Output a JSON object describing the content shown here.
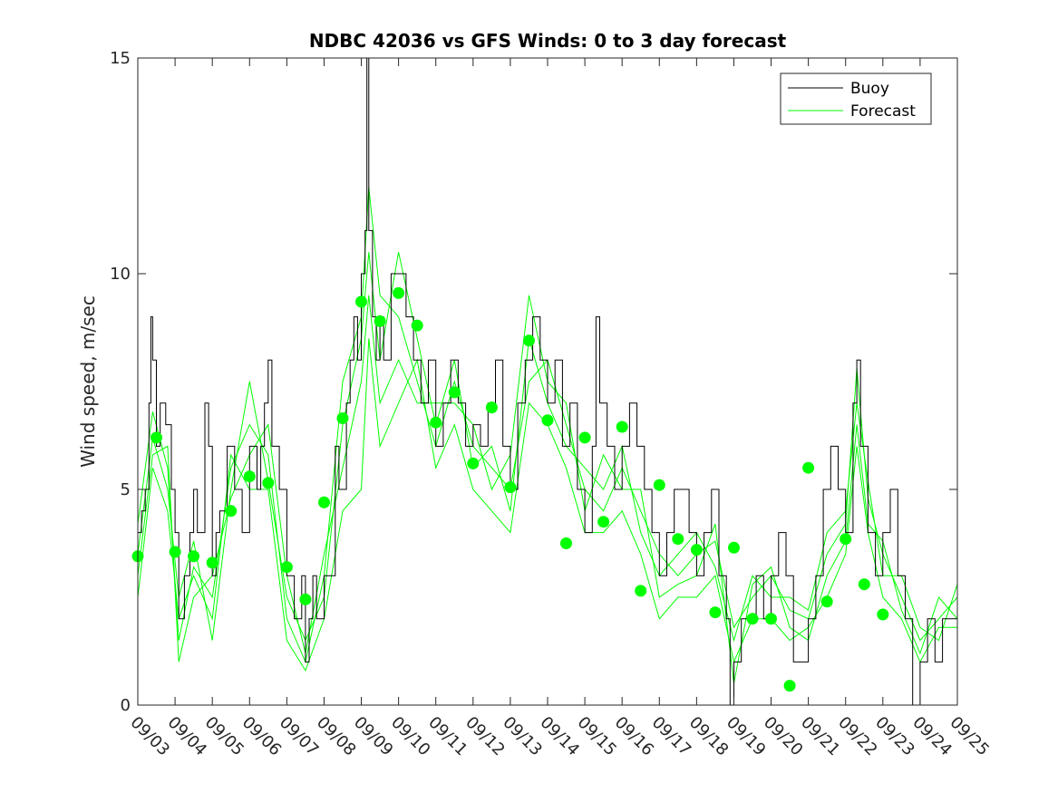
{
  "chart_data": {
    "type": "line",
    "title": "NDBC 42036 vs GFS Winds: 0 to 3 day forecast",
    "xlabel": "",
    "ylabel": "Wind speed, m/sec",
    "ylim": [
      0,
      15
    ],
    "yticks": [
      0,
      5,
      10,
      15
    ],
    "xticks": [
      "09/03",
      "09/04",
      "09/05",
      "09/06",
      "09/07",
      "09/08",
      "09/09",
      "09/10",
      "09/11",
      "09/12",
      "09/13",
      "09/14",
      "09/15",
      "09/16",
      "09/17",
      "09/18",
      "09/19",
      "09/20",
      "09/21",
      "09/22",
      "09/23",
      "09/24",
      "09/25"
    ],
    "legend": {
      "position": "top-right",
      "entries": [
        "Buoy",
        "Forecast"
      ]
    },
    "colors": {
      "buoy": "#000000",
      "forecast": "#00ff00",
      "axis": "#262626"
    },
    "buoy_points": [
      [
        0,
        4
      ],
      [
        0.1,
        4.5
      ],
      [
        0.2,
        5
      ],
      [
        0.3,
        7
      ],
      [
        0.35,
        9
      ],
      [
        0.4,
        8
      ],
      [
        0.5,
        6
      ],
      [
        0.6,
        7
      ],
      [
        0.75,
        6.5
      ],
      [
        0.9,
        5
      ],
      [
        1.0,
        4
      ],
      [
        1.1,
        2
      ],
      [
        1.25,
        3
      ],
      [
        1.4,
        4
      ],
      [
        1.5,
        5
      ],
      [
        1.6,
        4
      ],
      [
        1.8,
        7
      ],
      [
        1.9,
        6
      ],
      [
        2.0,
        3
      ],
      [
        2.1,
        4
      ],
      [
        2.2,
        4.5
      ],
      [
        2.4,
        6
      ],
      [
        2.6,
        5
      ],
      [
        2.8,
        4
      ],
      [
        3.0,
        6
      ],
      [
        3.2,
        5
      ],
      [
        3.3,
        6
      ],
      [
        3.4,
        7
      ],
      [
        3.5,
        8
      ],
      [
        3.6,
        6
      ],
      [
        3.8,
        5
      ],
      [
        4.0,
        3
      ],
      [
        4.2,
        2
      ],
      [
        4.4,
        3
      ],
      [
        4.5,
        1
      ],
      [
        4.6,
        2
      ],
      [
        4.7,
        3
      ],
      [
        4.8,
        2
      ],
      [
        5.0,
        3
      ],
      [
        5.2,
        3
      ],
      [
        5.3,
        6
      ],
      [
        5.4,
        5
      ],
      [
        5.6,
        7
      ],
      [
        5.7,
        8
      ],
      [
        5.8,
        9
      ],
      [
        5.9,
        8
      ],
      [
        6.0,
        10
      ],
      [
        6.1,
        11
      ],
      [
        6.15,
        15
      ],
      [
        6.2,
        11
      ],
      [
        6.3,
        9
      ],
      [
        6.4,
        8
      ],
      [
        6.5,
        9
      ],
      [
        6.6,
        8
      ],
      [
        6.8,
        10
      ],
      [
        7.0,
        10
      ],
      [
        7.2,
        9
      ],
      [
        7.4,
        8
      ],
      [
        7.6,
        7
      ],
      [
        7.8,
        8
      ],
      [
        8.0,
        6
      ],
      [
        8.2,
        7
      ],
      [
        8.4,
        8
      ],
      [
        8.6,
        7
      ],
      [
        8.8,
        6
      ],
      [
        9.0,
        6.5
      ],
      [
        9.2,
        6
      ],
      [
        9.4,
        7
      ],
      [
        9.6,
        8
      ],
      [
        9.8,
        6
      ],
      [
        10.0,
        5
      ],
      [
        10.2,
        7
      ],
      [
        10.4,
        8
      ],
      [
        10.6,
        9
      ],
      [
        10.8,
        8
      ],
      [
        11.0,
        7
      ],
      [
        11.2,
        8
      ],
      [
        11.4,
        6
      ],
      [
        11.6,
        7
      ],
      [
        11.8,
        5
      ],
      [
        12.0,
        4
      ],
      [
        12.2,
        6
      ],
      [
        12.3,
        9
      ],
      [
        12.4,
        7
      ],
      [
        12.6,
        6
      ],
      [
        12.8,
        5
      ],
      [
        13.0,
        6
      ],
      [
        13.2,
        7
      ],
      [
        13.4,
        6
      ],
      [
        13.6,
        5
      ],
      [
        13.8,
        4
      ],
      [
        14.0,
        3
      ],
      [
        14.2,
        4
      ],
      [
        14.4,
        5
      ],
      [
        14.6,
        5
      ],
      [
        14.8,
        4
      ],
      [
        15.0,
        3
      ],
      [
        15.2,
        4
      ],
      [
        15.4,
        5
      ],
      [
        15.6,
        3
      ],
      [
        15.8,
        2
      ],
      [
        15.9,
        0
      ],
      [
        16.0,
        1
      ],
      [
        16.2,
        2
      ],
      [
        16.4,
        2
      ],
      [
        16.6,
        3
      ],
      [
        16.8,
        2
      ],
      [
        17.0,
        3
      ],
      [
        17.2,
        4
      ],
      [
        17.4,
        3
      ],
      [
        17.6,
        1
      ],
      [
        17.8,
        1
      ],
      [
        18.0,
        2
      ],
      [
        18.2,
        3
      ],
      [
        18.4,
        5
      ],
      [
        18.6,
        6
      ],
      [
        18.8,
        5
      ],
      [
        19.0,
        4
      ],
      [
        19.2,
        7
      ],
      [
        19.3,
        8
      ],
      [
        19.4,
        6
      ],
      [
        19.6,
        4
      ],
      [
        19.8,
        3
      ],
      [
        20.0,
        4
      ],
      [
        20.2,
        5
      ],
      [
        20.4,
        3
      ],
      [
        20.6,
        2
      ],
      [
        20.8,
        0
      ],
      [
        21.0,
        1
      ],
      [
        21.2,
        2
      ],
      [
        21.4,
        1
      ],
      [
        21.6,
        2
      ],
      [
        22.0,
        2
      ]
    ],
    "forecast_runs": [
      [
        [
          0,
          4.2
        ],
        [
          0.4,
          6.8
        ],
        [
          0.8,
          5.5
        ],
        [
          1.1,
          1.5
        ],
        [
          1.5,
          3.2
        ],
        [
          2.0,
          2.5
        ],
        [
          2.5,
          5.5
        ],
        [
          3.0,
          6.5
        ],
        [
          3.5,
          5.8
        ],
        [
          4.0,
          2.0
        ],
        [
          4.5,
          1.0
        ],
        [
          5.0,
          3.0
        ],
        [
          5.5,
          7.5
        ],
        [
          6.0,
          9.0
        ],
        [
          6.2,
          12.0
        ],
        [
          6.5,
          9.5
        ],
        [
          7.0,
          9.0
        ],
        [
          7.5,
          7.5
        ],
        [
          8.0,
          6.0
        ],
        [
          8.5,
          7.5
        ],
        [
          9.0,
          6.0
        ],
        [
          9.5,
          5.5
        ],
        [
          10.0,
          5.0
        ],
        [
          10.5,
          7.5
        ],
        [
          11.0,
          8.0
        ],
        [
          11.5,
          6.5
        ],
        [
          12.0,
          5.0
        ],
        [
          12.5,
          4.5
        ],
        [
          13.0,
          5.5
        ],
        [
          13.5,
          4.5
        ],
        [
          14.0,
          3.5
        ],
        [
          14.5,
          3.0
        ],
        [
          15.0,
          3.5
        ],
        [
          15.5,
          3.8
        ],
        [
          16.0,
          1.8
        ],
        [
          16.5,
          2.5
        ],
        [
          17.0,
          3.0
        ],
        [
          17.5,
          2.2
        ],
        [
          18.0,
          2.0
        ],
        [
          18.5,
          3.5
        ],
        [
          19.0,
          4.2
        ],
        [
          19.3,
          7.8
        ],
        [
          19.6,
          4.8
        ],
        [
          20.0,
          3.5
        ],
        [
          20.5,
          2.5
        ],
        [
          21.0,
          1.5
        ],
        [
          21.5,
          2.0
        ],
        [
          22.0,
          2.5
        ]
      ],
      [
        [
          0,
          3.5
        ],
        [
          0.4,
          6.2
        ],
        [
          0.8,
          5.0
        ],
        [
          1.1,
          2.5
        ],
        [
          1.5,
          3.8
        ],
        [
          2.0,
          1.5
        ],
        [
          2.5,
          5.0
        ],
        [
          3.0,
          7.5
        ],
        [
          3.5,
          5.2
        ],
        [
          4.0,
          2.5
        ],
        [
          4.5,
          1.5
        ],
        [
          5.0,
          2.5
        ],
        [
          5.5,
          6.5
        ],
        [
          6.0,
          8.5
        ],
        [
          6.2,
          10.5
        ],
        [
          6.5,
          8.0
        ],
        [
          7.0,
          10.5
        ],
        [
          7.5,
          8.5
        ],
        [
          8.0,
          6.5
        ],
        [
          8.5,
          8.0
        ],
        [
          9.0,
          5.5
        ],
        [
          9.5,
          6.0
        ],
        [
          10.0,
          4.5
        ],
        [
          10.5,
          8.5
        ],
        [
          11.0,
          7.0
        ],
        [
          11.5,
          6.0
        ],
        [
          12.0,
          5.5
        ],
        [
          12.5,
          5.0
        ],
        [
          13.0,
          6.0
        ],
        [
          13.5,
          4.0
        ],
        [
          14.0,
          3.0
        ],
        [
          14.5,
          3.5
        ],
        [
          15.0,
          4.0
        ],
        [
          15.5,
          3.2
        ],
        [
          16.0,
          1.5
        ],
        [
          16.5,
          3.0
        ],
        [
          17.0,
          2.5
        ],
        [
          17.5,
          2.5
        ],
        [
          18.0,
          2.2
        ],
        [
          18.5,
          4.0
        ],
        [
          19.0,
          4.5
        ],
        [
          19.3,
          7.0
        ],
        [
          19.6,
          5.2
        ],
        [
          20.0,
          3.0
        ],
        [
          20.5,
          3.0
        ],
        [
          21.0,
          1.8
        ],
        [
          21.5,
          1.5
        ],
        [
          22.0,
          2.8
        ]
      ],
      [
        [
          0,
          3.0
        ],
        [
          0.4,
          5.8
        ],
        [
          0.8,
          6.0
        ],
        [
          1.1,
          1.0
        ],
        [
          1.5,
          2.5
        ],
        [
          2.0,
          3.0
        ],
        [
          2.5,
          4.8
        ],
        [
          3.0,
          5.8
        ],
        [
          3.5,
          6.5
        ],
        [
          4.0,
          3.0
        ],
        [
          4.5,
          1.2
        ],
        [
          5.0,
          3.5
        ],
        [
          5.5,
          5.5
        ],
        [
          6.0,
          7.5
        ],
        [
          6.2,
          9.5
        ],
        [
          6.5,
          7.0
        ],
        [
          7.0,
          8.0
        ],
        [
          7.5,
          7.0
        ],
        [
          8.0,
          7.0
        ],
        [
          8.5,
          7.0
        ],
        [
          9.0,
          6.5
        ],
        [
          9.5,
          5.0
        ],
        [
          10.0,
          5.8
        ],
        [
          10.5,
          9.5
        ],
        [
          11.0,
          7.5
        ],
        [
          11.5,
          7.0
        ],
        [
          12.0,
          4.5
        ],
        [
          12.5,
          5.8
        ],
        [
          13.0,
          5.0
        ],
        [
          13.5,
          5.0
        ],
        [
          14.0,
          2.5
        ],
        [
          14.5,
          2.8
        ],
        [
          15.0,
          3.0
        ],
        [
          15.5,
          4.2
        ],
        [
          16.0,
          0.5
        ],
        [
          16.5,
          2.8
        ],
        [
          17.0,
          3.2
        ],
        [
          17.5,
          1.8
        ],
        [
          18.0,
          1.5
        ],
        [
          18.5,
          3.0
        ],
        [
          19.0,
          3.8
        ],
        [
          19.3,
          6.5
        ],
        [
          19.6,
          4.2
        ],
        [
          20.0,
          3.8
        ],
        [
          20.5,
          2.2
        ],
        [
          21.0,
          1.2
        ],
        [
          21.5,
          2.5
        ],
        [
          22.0,
          2.0
        ]
      ],
      [
        [
          0,
          2.5
        ],
        [
          0.4,
          5.5
        ],
        [
          0.8,
          4.5
        ],
        [
          1.1,
          2.0
        ],
        [
          1.5,
          3.0
        ],
        [
          2.0,
          2.0
        ],
        [
          2.5,
          5.8
        ],
        [
          3.0,
          5.0
        ],
        [
          3.5,
          5.0
        ],
        [
          4.0,
          1.5
        ],
        [
          4.5,
          0.8
        ],
        [
          5.0,
          2.0
        ],
        [
          5.5,
          4.5
        ],
        [
          6.0,
          5.0
        ],
        [
          6.2,
          8.5
        ],
        [
          6.5,
          6.0
        ],
        [
          7.0,
          7.0
        ],
        [
          7.5,
          8.0
        ],
        [
          8.0,
          5.5
        ],
        [
          8.5,
          6.5
        ],
        [
          9.0,
          5.0
        ],
        [
          9.5,
          4.5
        ],
        [
          10.0,
          4.0
        ],
        [
          10.5,
          7.0
        ],
        [
          11.0,
          6.5
        ],
        [
          11.5,
          5.5
        ],
        [
          12.0,
          4.0
        ],
        [
          12.5,
          4.0
        ],
        [
          13.0,
          4.5
        ],
        [
          13.5,
          3.5
        ],
        [
          14.0,
          2.0
        ],
        [
          14.5,
          2.5
        ],
        [
          15.0,
          2.5
        ],
        [
          15.5,
          3.0
        ],
        [
          16.0,
          1.0
        ],
        [
          16.5,
          2.0
        ],
        [
          17.0,
          2.0
        ],
        [
          17.5,
          1.5
        ],
        [
          18.0,
          1.8
        ],
        [
          18.5,
          2.5
        ],
        [
          19.0,
          3.5
        ],
        [
          19.3,
          6.0
        ],
        [
          19.6,
          4.0
        ],
        [
          20.0,
          2.5
        ],
        [
          20.5,
          2.0
        ],
        [
          21.0,
          1.0
        ],
        [
          21.5,
          1.8
        ],
        [
          22.0,
          1.8
        ]
      ]
    ],
    "forecast_markers": [
      [
        0,
        3.45
      ],
      [
        0.5,
        6.2
      ],
      [
        1.0,
        3.55
      ],
      [
        1.5,
        3.45
      ],
      [
        2.0,
        3.3
      ],
      [
        2.5,
        4.5
      ],
      [
        3.0,
        5.3
      ],
      [
        3.5,
        5.15
      ],
      [
        4.0,
        3.2
      ],
      [
        4.5,
        2.45
      ],
      [
        5.0,
        4.7
      ],
      [
        5.5,
        6.65
      ],
      [
        6.0,
        9.35
      ],
      [
        6.5,
        8.9
      ],
      [
        7.0,
        9.55
      ],
      [
        7.5,
        8.8
      ],
      [
        8.0,
        6.55
      ],
      [
        8.5,
        7.25
      ],
      [
        9.0,
        5.6
      ],
      [
        9.5,
        6.9
      ],
      [
        10.0,
        5.05
      ],
      [
        10.5,
        8.45
      ],
      [
        11.0,
        6.6
      ],
      [
        11.5,
        3.75
      ],
      [
        12.0,
        6.2
      ],
      [
        12.5,
        4.25
      ],
      [
        13.0,
        6.45
      ],
      [
        13.5,
        2.65
      ],
      [
        14.0,
        5.1
      ],
      [
        14.5,
        3.85
      ],
      [
        15.0,
        3.6
      ],
      [
        15.5,
        2.15
      ],
      [
        16.0,
        3.65
      ],
      [
        16.5,
        2.0
      ],
      [
        17.0,
        2.0
      ],
      [
        17.5,
        0.45
      ],
      [
        18.0,
        5.5
      ],
      [
        18.5,
        2.4
      ],
      [
        19.0,
        3.85
      ],
      [
        19.5,
        2.8
      ],
      [
        20.0,
        2.1
      ]
    ]
  }
}
